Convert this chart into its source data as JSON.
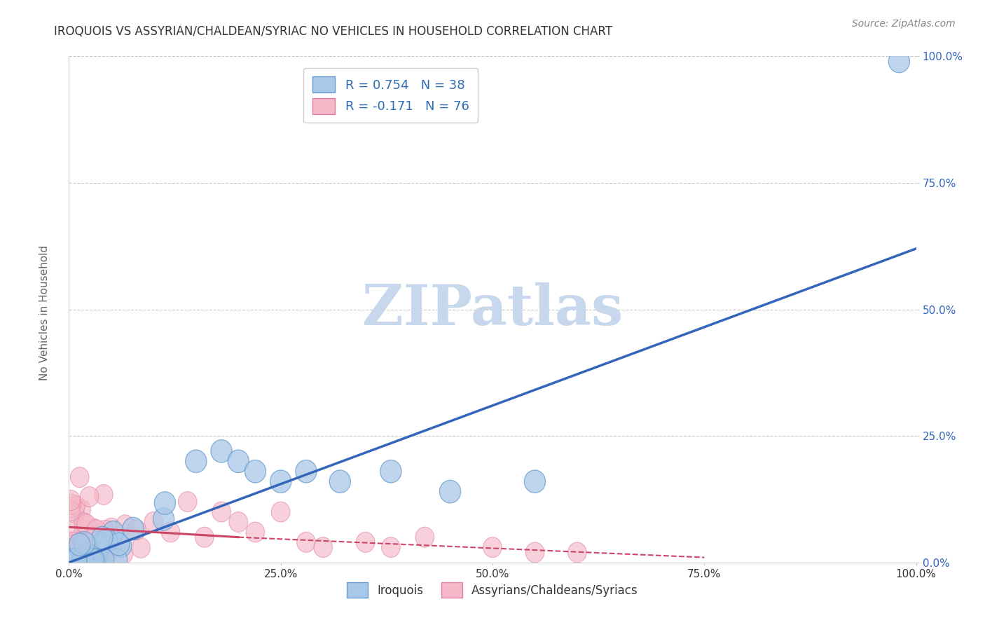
{
  "title": "IROQUOIS VS ASSYRIAN/CHALDEAN/SYRIAC NO VEHICLES IN HOUSEHOLD CORRELATION CHART",
  "source": "Source: ZipAtlas.com",
  "ylabel": "No Vehicles in Household",
  "xlim": [
    0,
    100
  ],
  "ylim": [
    0,
    100
  ],
  "xtick_vals": [
    0,
    25,
    50,
    75,
    100
  ],
  "ytick_vals": [
    0,
    25,
    50,
    75,
    100
  ],
  "xtick_labels": [
    "0.0%",
    "25.0%",
    "50.0%",
    "75.0%",
    "100.0%"
  ],
  "ytick_labels": [
    "0.0%",
    "25.0%",
    "50.0%",
    "75.0%",
    "100.0%"
  ],
  "blue_fill": "#A8C8E8",
  "blue_edge": "#6699CC",
  "pink_fill": "#F4B8C8",
  "pink_edge": "#E080A0",
  "line_blue": "#3366BB",
  "line_pink": "#CC4466",
  "watermark_color": "#C8D8EC",
  "grid_color": "#BBBBBB",
  "bg_color": "#FFFFFF",
  "title_color": "#333333",
  "ylabel_color": "#666666",
  "ytick_color": "#3366BB",
  "xtick_color": "#333333",
  "source_color": "#888888",
  "legend_r1": "R = 0.754",
  "legend_n1": "N = 38",
  "legend_r2": "R = -0.171",
  "legend_n2": "N = 76",
  "blue_line_x0": 0,
  "blue_line_y0": 0,
  "blue_line_x1": 100,
  "blue_line_y1": 62,
  "pink_line_solid_x0": 0,
  "pink_line_solid_y0": 7,
  "pink_line_solid_x1": 20,
  "pink_line_solid_y1": 5,
  "pink_line_dash_x0": 20,
  "pink_line_dash_y0": 5,
  "pink_line_dash_x1": 75,
  "pink_line_dash_y1": 1
}
